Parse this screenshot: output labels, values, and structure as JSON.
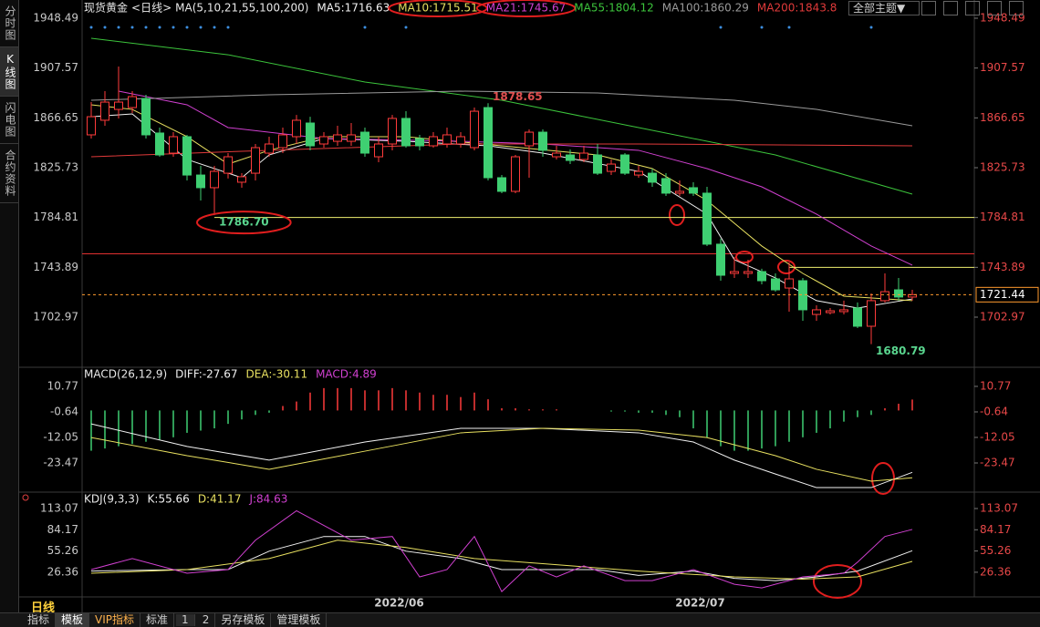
{
  "ui": {
    "sidebar": [
      "分时图",
      "K线图",
      "闪电图",
      "合约资料"
    ],
    "theme_button": "全部主题▼",
    "period_label": "日线",
    "toolbar": [
      "指标",
      "模板",
      "VIP指标",
      "标准",
      1,
      2,
      "另存模板",
      "管理模板"
    ]
  },
  "chart_data": [
    {
      "type": "candlestick",
      "title": "现货黄金",
      "period": "<日线>",
      "indicator": "MA(5,10,21,55,100,200)",
      "ylim": [
        1664.05,
        1954.48
      ],
      "yticks": [
        1948.49,
        1907.57,
        1866.65,
        1825.73,
        1784.81,
        1743.89,
        1702.97
      ],
      "up_color": "#ff3b3b",
      "down_color": "#3fcf72",
      "open": [
        1852.7,
        1864.7,
        1873.6,
        1875.1,
        1882.6,
        1854.2,
        1837.7,
        1851.2,
        1819.7,
        1809.3,
        1821.2,
        1813.8,
        1821.2,
        1837.7,
        1842.2,
        1851.2,
        1862.4,
        1845.2,
        1847.4,
        1847.4,
        1854.9,
        1834.7,
        1845.2,
        1866.2,
        1849.7,
        1843.7,
        1845.2,
        1845.2,
        1842.2,
        1875.1,
        1817.5,
        1806.3,
        1843.7,
        1854.9,
        1834.7,
        1836.2,
        1832.5,
        1836.2,
        1822.7,
        1836.2,
        1819.7,
        1821.2,
        1816.8,
        1804.8,
        1809.3,
        1804.8,
        1762.9,
        1738.9,
        1738.9,
        1740.4,
        1734.4,
        1726.9,
        1732.9,
        1705.2,
        1706.7,
        1707.5,
        1710.5,
        1695.5,
        1716.5,
        1725.4,
        1719.5
      ],
      "high": [
        1879.6,
        1888.6,
        1908.8,
        1888.6,
        1885.6,
        1858.7,
        1854.9,
        1852.7,
        1827.2,
        1827.2,
        1837.7,
        1821.2,
        1845.2,
        1851.2,
        1858.7,
        1869.1,
        1867.6,
        1854.9,
        1860.2,
        1862.4,
        1858.7,
        1851.2,
        1869.1,
        1872.1,
        1852.7,
        1854.9,
        1858.7,
        1854.9,
        1875.1,
        1878.65,
        1819.7,
        1836.2,
        1857.2,
        1857.2,
        1843.7,
        1840.7,
        1843.7,
        1845.2,
        1832.5,
        1837.7,
        1827.2,
        1825.0,
        1821.2,
        1815.3,
        1813.8,
        1810.0,
        1767.4,
        1752.4,
        1750.1,
        1742.7,
        1738.9,
        1747.9,
        1735.2,
        1712.7,
        1710.5,
        1716.5,
        1715.0,
        1722.4,
        1738.9,
        1735.2,
        1725.4
      ],
      "low": [
        1849.7,
        1860.2,
        1866.2,
        1870.6,
        1849.7,
        1834.7,
        1834.7,
        1815.3,
        1798.8,
        1786.7,
        1816.8,
        1809.3,
        1815.3,
        1834.7,
        1837.7,
        1845.2,
        1840.0,
        1842.2,
        1843.7,
        1843.7,
        1834.7,
        1830.2,
        1840.0,
        1842.2,
        1840.0,
        1842.2,
        1842.2,
        1842.2,
        1840.0,
        1815.3,
        1804.8,
        1804.8,
        1817.5,
        1834.7,
        1832.5,
        1828.7,
        1830.2,
        1819.7,
        1819.7,
        1819.7,
        1817.5,
        1810.0,
        1802.5,
        1802.5,
        1802.5,
        1761.4,
        1732.9,
        1735.2,
        1735.2,
        1729.9,
        1723.9,
        1707.5,
        1700.0,
        1700.0,
        1705.2,
        1705.2,
        1694.0,
        1680.79,
        1715.0,
        1716.5,
        1716.5
      ],
      "close": [
        1867.6,
        1879.6,
        1879.6,
        1884.1,
        1852.7,
        1836.2,
        1851.2,
        1819.7,
        1809.3,
        1822.7,
        1834.7,
        1818.3,
        1842.2,
        1845.2,
        1852.7,
        1864.7,
        1843.7,
        1851.2,
        1852.7,
        1852.7,
        1837.7,
        1845.2,
        1866.2,
        1843.7,
        1843.7,
        1851.2,
        1852.7,
        1851.2,
        1872.1,
        1817.5,
        1806.3,
        1834.7,
        1854.9,
        1840.0,
        1837.7,
        1831.7,
        1837.7,
        1821.2,
        1828.7,
        1821.2,
        1822.7,
        1813.8,
        1804.8,
        1806.3,
        1804.8,
        1762.9,
        1737.4,
        1740.4,
        1740.4,
        1732.9,
        1725.4,
        1734.4,
        1709.0,
        1709.0,
        1708.2,
        1709.0,
        1695.5,
        1716.5,
        1723.9,
        1719.5,
        1721.44
      ],
      "series": [
        {
          "name": "MA5:1716.63",
          "color": "#f2f2f2",
          "x": [
            0,
            3,
            7,
            11,
            13,
            17,
            23,
            29,
            33,
            40,
            45,
            47,
            50,
            53,
            56,
            60
          ],
          "values": [
            1867.6,
            1869.9,
            1832.5,
            1817.5,
            1836.2,
            1849.7,
            1847.4,
            1843.7,
            1837.7,
            1822.7,
            1787.6,
            1750.1,
            1735.2,
            1716.5,
            1710.5,
            1717.9
          ]
        },
        {
          "name": "MA10:1715.51",
          "color": "#e8e060",
          "x": [
            0,
            3,
            7,
            10,
            13,
            17,
            23,
            30,
            37,
            41,
            45,
            49,
            52,
            55,
            60
          ],
          "values": [
            1877.4,
            1873.6,
            1851.2,
            1828.7,
            1840.0,
            1851.2,
            1851.2,
            1843.7,
            1836.2,
            1825.0,
            1798.8,
            1761.4,
            1738.9,
            1720.2,
            1716.5
          ]
        },
        {
          "name": "MA21:1745.67",
          "color": "#d040d0",
          "x": [
            2,
            7,
            10,
            17,
            27,
            33,
            40,
            45,
            49,
            53,
            57,
            60
          ],
          "values": [
            1888.6,
            1877.4,
            1858.7,
            1849.7,
            1847.4,
            1845.2,
            1840.0,
            1825.0,
            1810.0,
            1787.6,
            1761.4,
            1745.7
          ]
        },
        {
          "name": "MA55:1804.12",
          "color": "#3cc43c",
          "x": [
            0,
            10,
            20,
            30,
            40,
            50,
            60
          ],
          "values": [
            1932.0,
            1918.5,
            1896.1,
            1881.1,
            1858.7,
            1836.2,
            1804.0
          ]
        },
        {
          "name": "MA100:1860.29",
          "color": "#9a9a9a",
          "x": [
            0,
            13,
            27,
            37,
            47,
            53,
            60
          ],
          "values": [
            1881.1,
            1885.6,
            1888.6,
            1887.1,
            1881.1,
            1873.6,
            1860.2
          ]
        },
        {
          "name": "MA200:1843.8",
          "color": "#e03a3a",
          "x": [
            0,
            13,
            27,
            40,
            60
          ],
          "values": [
            1834.7,
            1840.0,
            1845.2,
            1845.2,
            1843.7
          ]
        }
      ],
      "levels": [
        {
          "value": 1784.81,
          "color": "#f0f070",
          "start_index": 9
        },
        {
          "value": 1755,
          "color": "#e03030"
        },
        {
          "value": 1743.89,
          "color": "#f0f070",
          "start_index": 51
        }
      ],
      "annotations": [
        {
          "index": 29,
          "at": "high",
          "label": "1878.65",
          "color": "#e05050"
        },
        {
          "index": 9,
          "at": "low",
          "label": "1786.70",
          "color": "#5ad68f"
        },
        {
          "index": 57,
          "at": "low",
          "label": "1680.79",
          "color": "#5ad68f"
        }
      ],
      "last_price_color": "#ff9a2e"
    },
    {
      "type": "macd",
      "title": "MACD(26,12,9)",
      "ylim": [
        -35.29,
        18.5
      ],
      "yticks": [
        10.77,
        -0.64,
        -12.05,
        -23.47
      ],
      "histogram": {
        "name": "MACD:4.89",
        "color": "#d040d0",
        "up_color": "#ff3b3b",
        "down_color": "#3fcf72",
        "values": [
          -18,
          -17,
          -16,
          -15,
          -14,
          -13,
          -12,
          -10,
          -9,
          -8,
          -6,
          -4,
          -2,
          -1,
          2,
          4,
          8,
          10,
          10,
          10,
          9,
          9,
          10,
          9,
          8,
          7,
          7,
          6,
          8,
          5,
          1,
          1,
          0.5,
          0.5,
          0.5,
          0,
          0,
          0,
          -0.5,
          -0.5,
          -1,
          -1,
          -2,
          -3,
          -8,
          -12,
          -16,
          -18,
          -18,
          -17,
          -16,
          -14,
          -12,
          -10,
          -8,
          -5,
          -3,
          -2,
          1,
          3,
          4.89
        ]
      },
      "series": [
        {
          "name": "DIFF:-27.67",
          "color": "#f2f2f2",
          "x": [
            0,
            7,
            13,
            20,
            27,
            33,
            40,
            44,
            47,
            50,
            53,
            57,
            60
          ],
          "values": [
            -6,
            -16.1,
            -22.2,
            -14.1,
            -8,
            -8,
            -10,
            -14.1,
            -22.2,
            -28.4,
            -34.5,
            -34.5,
            -27.67
          ]
        },
        {
          "name": "DEA:-30.11",
          "color": "#e8e060",
          "x": [
            0,
            7,
            13,
            20,
            27,
            33,
            40,
            45,
            50,
            53,
            57,
            60
          ],
          "values": [
            -12.1,
            -20.2,
            -26.3,
            -18.2,
            -10,
            -8,
            -8.8,
            -12.1,
            -20.2,
            -26.3,
            -31.6,
            -30.11
          ]
        }
      ]
    },
    {
      "type": "line",
      "title": "KDJ(9,3,3)",
      "ylim": [
        -7.24,
        129.2
      ],
      "yticks": [
        113.07,
        84.17,
        55.26,
        26.36
      ],
      "xticks": [
        {
          "value": 22.5,
          "label": "2022/06"
        },
        {
          "value": 44.5,
          "label": "2022/07"
        }
      ],
      "series": [
        {
          "name": "K:55.66",
          "color": "#f2f2f2",
          "x": [
            0,
            7,
            10,
            13,
            17,
            20,
            23,
            27,
            30,
            33,
            37,
            40,
            44,
            47,
            50,
            53,
            56,
            60
          ],
          "values": [
            28,
            30,
            30,
            55,
            75,
            75,
            55,
            45,
            30,
            30,
            30,
            22,
            28,
            18,
            15,
            20,
            28,
            55.66
          ]
        },
        {
          "name": "D:41.17",
          "color": "#e8e060",
          "x": [
            0,
            7,
            13,
            18,
            23,
            28,
            33,
            40,
            47,
            52,
            56,
            60
          ],
          "values": [
            25,
            30,
            45,
            70,
            60,
            45,
            38,
            28,
            20,
            17,
            20,
            41.17
          ]
        },
        {
          "name": "J:84.63",
          "color": "#d040d0",
          "x": [
            0,
            3,
            7,
            10,
            12,
            15,
            17,
            19,
            22,
            24,
            26,
            28,
            30,
            32,
            34,
            36,
            39,
            41,
            44,
            47,
            49,
            52,
            55,
            56,
            58,
            60
          ],
          "values": [
            30,
            45,
            25,
            30,
            70,
            110,
            90,
            70,
            75,
            20,
            30,
            75,
            0,
            35,
            20,
            35,
            15,
            15,
            30,
            10,
            5,
            20,
            25,
            40,
            75,
            84.63
          ]
        }
      ]
    }
  ]
}
